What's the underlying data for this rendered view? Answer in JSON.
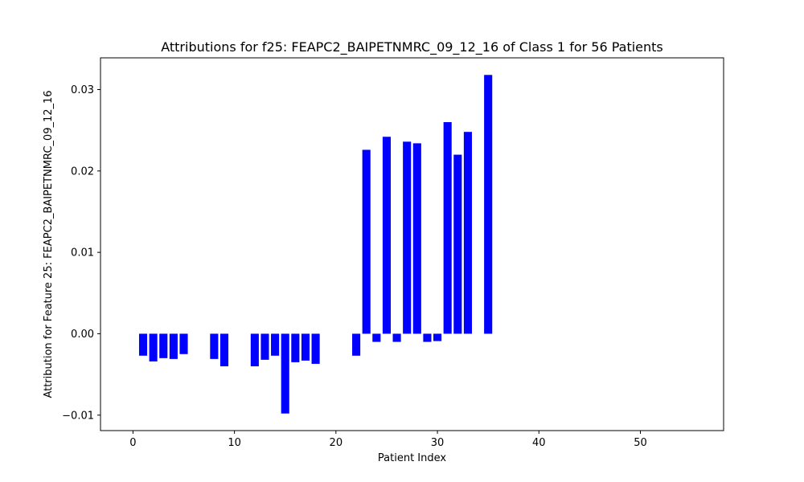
{
  "chart_data": {
    "type": "bar",
    "title": "Attributions for f25: FEAPC2_BAIPETNMRC_09_12_16 of Class 1 for 56 Patients",
    "xlabel": "Patient Index",
    "ylabel": "Attribution for Feature 25: FEAPC2_BAIPETNMRC_09_12_16",
    "xlim": [
      -3.2,
      58.2
    ],
    "ylim": [
      -0.0119,
      0.0339
    ],
    "xticks": [
      0,
      10,
      20,
      30,
      40,
      50
    ],
    "xtick_labels": [
      "0",
      "10",
      "20",
      "30",
      "40",
      "50"
    ],
    "yticks": [
      -0.01,
      0.0,
      0.01,
      0.02,
      0.03
    ],
    "ytick_labels": [
      "−0.01",
      "0.00",
      "0.01",
      "0.02",
      "0.03"
    ],
    "grid": false,
    "legend": "none",
    "bar_color": "#0000ff",
    "x": [
      0,
      1,
      2,
      3,
      4,
      5,
      6,
      7,
      8,
      9,
      10,
      11,
      12,
      13,
      14,
      15,
      16,
      17,
      18,
      19,
      20,
      21,
      22,
      23,
      24,
      25,
      26,
      27,
      28,
      29,
      30,
      31,
      32,
      33,
      34,
      35,
      36,
      37,
      38,
      39,
      40,
      41,
      42,
      43,
      44,
      45,
      46,
      47,
      48,
      49,
      50,
      51,
      52,
      53,
      54,
      55
    ],
    "values": [
      0,
      -0.0027,
      -0.0034,
      -0.003,
      -0.0031,
      -0.0025,
      0,
      0,
      -0.0031,
      -0.004,
      0,
      0,
      -0.004,
      -0.0032,
      -0.0027,
      -0.0098,
      -0.0035,
      -0.0033,
      -0.0037,
      0,
      0,
      0,
      -0.0027,
      0.0226,
      -0.001,
      0.0242,
      -0.001,
      0.0236,
      0.0234,
      -0.001,
      -0.0009,
      0.026,
      0.022,
      0.0248,
      0,
      0.0318,
      0,
      0,
      0,
      0,
      0,
      0,
      0,
      0,
      0,
      0,
      0,
      0,
      0,
      0,
      0,
      0,
      0,
      0,
      0,
      0
    ]
  }
}
